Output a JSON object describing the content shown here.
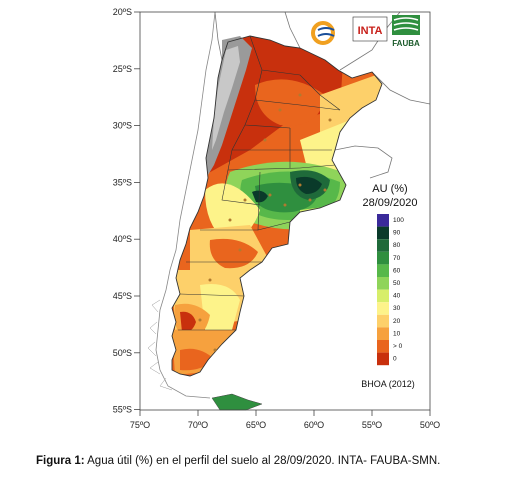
{
  "map": {
    "lat_ticks": [
      "20ºS",
      "25ºS",
      "30ºS",
      "35ºS",
      "40ºS",
      "45ºS",
      "50ºS",
      "55ºS"
    ],
    "lon_ticks": [
      "75ºO",
      "70ºO",
      "65ºO",
      "60ºO",
      "55ºO",
      "50ºO"
    ],
    "legend": {
      "title": "AU (%)",
      "date": "28/09/2020",
      "levels": [
        "100",
        "90",
        "80",
        "70",
        "60",
        "50",
        "40",
        "30",
        "20",
        "10",
        "> 0",
        "0"
      ],
      "colors": [
        "#3a2a9a",
        "#0a3a2a",
        "#1f6a3a",
        "#2f8f3f",
        "#57b84a",
        "#8fd45a",
        "#d7ee6a",
        "#fdf38a",
        "#fdd06a",
        "#f6a13e",
        "#e9651e",
        "#c8300d"
      ],
      "source": "BHOA (2012)"
    },
    "logos": {
      "inta": "INTA",
      "fauba": "FAUBA"
    }
  },
  "caption": {
    "label": "Figura 1:",
    "text": " Agua útil (%) en el perfil del suelo al 28/09/2020. INTA- FAUBA-SMN."
  }
}
